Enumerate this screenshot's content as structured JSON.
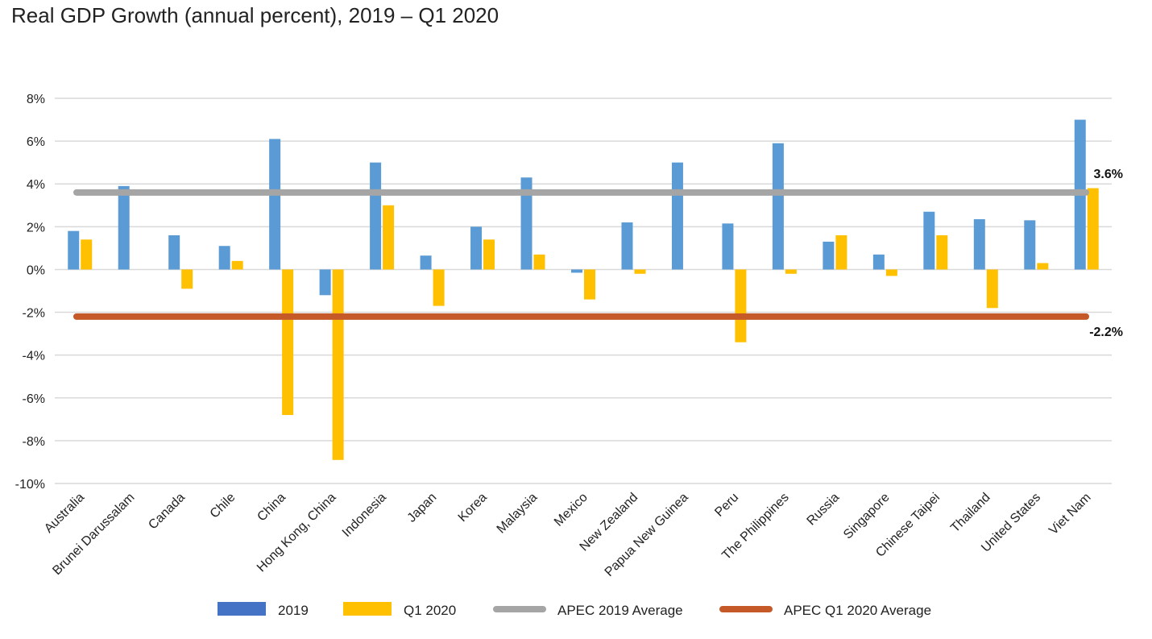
{
  "chart_data": {
    "type": "bar",
    "title": "Real GDP Growth (annual percent), 2019 – Q1 2020",
    "xlabel": "",
    "ylabel": "",
    "ylim": [
      -10,
      8
    ],
    "yticks": [
      8,
      6,
      4,
      2,
      0,
      -2,
      -4,
      -6,
      -8,
      -10
    ],
    "ytick_labels": [
      "8%",
      "6%",
      "4%",
      "2%",
      "0%",
      "-2%",
      "-4%",
      "-6%",
      "-8%",
      "-10%"
    ],
    "grid": true,
    "legend_position": "bottom",
    "categories": [
      "Australia",
      "Brunei Darussalam",
      "Canada",
      "Chile",
      "China",
      "Hong Kong, China",
      "Indonesia",
      "Japan",
      "Korea",
      "Malaysia",
      "Mexico",
      "New Zealand",
      "Papua New Guinea",
      "Peru",
      "The Philippines",
      "Russia",
      "Singapore",
      "Chinese Taipei",
      "Thailand",
      "United States",
      "Viet Nam"
    ],
    "series": [
      {
        "name": "2019",
        "color": "#5b9bd5",
        "values": [
          1.8,
          3.9,
          1.6,
          1.1,
          6.1,
          -1.2,
          5.0,
          0.65,
          2.0,
          4.3,
          -0.15,
          2.2,
          5.0,
          2.15,
          5.9,
          1.3,
          0.7,
          2.7,
          2.35,
          2.3,
          7.0
        ]
      },
      {
        "name": "Q1 2020",
        "color": "#ffc000",
        "values": [
          1.4,
          null,
          -0.9,
          0.4,
          -6.8,
          -8.9,
          3.0,
          -1.7,
          1.4,
          0.7,
          -1.4,
          -0.2,
          null,
          -3.4,
          -0.2,
          1.6,
          -0.3,
          1.6,
          -1.8,
          0.3,
          3.8
        ]
      }
    ],
    "reference_lines": [
      {
        "name": "APEC 2019 Average",
        "value": 3.6,
        "label": "3.6%",
        "color": "#a5a5a5"
      },
      {
        "name": "APEC Q1 2020 Average",
        "value": -2.2,
        "label": "-2.2%",
        "color": "#c55a28"
      }
    ],
    "legend": [
      {
        "label": "2019",
        "color": "#4472c4",
        "kind": "box"
      },
      {
        "label": "Q1 2020",
        "color": "#ffc000",
        "kind": "box"
      },
      {
        "label": "APEC 2019 Average",
        "color": "#a5a5a5",
        "kind": "line"
      },
      {
        "label": "APEC Q1 2020 Average",
        "color": "#c55a28",
        "kind": "line"
      }
    ]
  }
}
